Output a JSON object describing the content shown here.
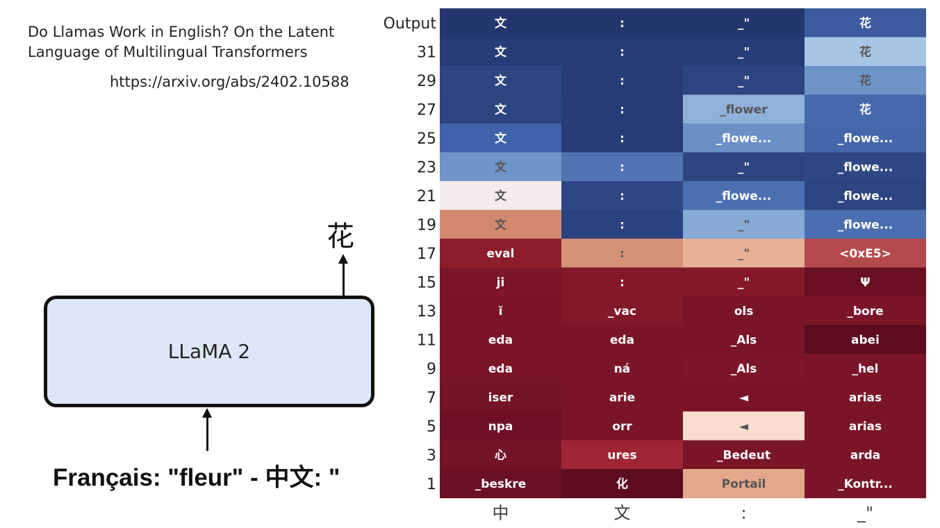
{
  "slide": {
    "paper_title_line1": "Do Llamas Work in English? On the Latent",
    "paper_title_line2": "Language of Multilingual Transformers",
    "paper_url": "https://arxiv.org/abs/2402.10588",
    "model_label": "LLaMA 2",
    "output_token": "花",
    "prompt": "Français: \"fleur\" - 中文: \""
  },
  "chart_data": {
    "type": "heatmap",
    "row_labels": [
      "Output",
      "31",
      "29",
      "27",
      "25",
      "23",
      "21",
      "19",
      "17",
      "15",
      "13",
      "11",
      "9",
      "7",
      "5",
      "3",
      "1"
    ],
    "col_labels": [
      "中",
      "文",
      ":",
      "_\""
    ],
    "cells": [
      [
        {
          "text": "文",
          "color": "#23376e"
        },
        {
          "text": ":",
          "color": "#23376e"
        },
        {
          "text": "_\"",
          "color": "#23376e"
        },
        {
          "text": "花",
          "color": "#3d5b9e"
        }
      ],
      [
        {
          "text": "文",
          "color": "#263c76"
        },
        {
          "text": ":",
          "color": "#263c76"
        },
        {
          "text": "_\"",
          "color": "#263c76"
        },
        {
          "text": "花",
          "color": "#a7c5e4"
        }
      ],
      [
        {
          "text": "文",
          "color": "#2d4683"
        },
        {
          "text": ":",
          "color": "#263c76"
        },
        {
          "text": "_\"",
          "color": "#2c4480"
        },
        {
          "text": "花",
          "color": "#6e94c7"
        }
      ],
      [
        {
          "text": "文",
          "color": "#2b4580"
        },
        {
          "text": ":",
          "color": "#263c76"
        },
        {
          "text": "_flower",
          "color": "#8fb1da"
        },
        {
          "text": "花",
          "color": "#4669ac"
        }
      ],
      [
        {
          "text": "文",
          "color": "#3f62aa"
        },
        {
          "text": ":",
          "color": "#263c76"
        },
        {
          "text": "_flowe...",
          "color": "#6a90c5"
        },
        {
          "text": "_flowe...",
          "color": "#4566a9"
        }
      ],
      [
        {
          "text": "文",
          "color": "#6e94c8"
        },
        {
          "text": ":",
          "color": "#5273b2"
        },
        {
          "text": "_\"",
          "color": "#2c4580"
        },
        {
          "text": "_flowe...",
          "color": "#2f4885"
        }
      ],
      [
        {
          "text": "文",
          "color": "#f6ebec"
        },
        {
          "text": ":",
          "color": "#2f4885"
        },
        {
          "text": "_flowe...",
          "color": "#4c6fb0"
        },
        {
          "text": "_flowe...",
          "color": "#2c4580"
        }
      ],
      [
        {
          "text": "文",
          "color": "#d3896d"
        },
        {
          "text": ":",
          "color": "#2a437f"
        },
        {
          "text": "_\"",
          "color": "#86a9d5"
        },
        {
          "text": "_flowe...",
          "color": "#4a6eaf"
        }
      ],
      [
        {
          "text": "eval",
          "color": "#8c1d2d"
        },
        {
          "text": ":",
          "color": "#d69277"
        },
        {
          "text": "_\"",
          "color": "#e8b094"
        },
        {
          "text": "<0xE5>",
          "color": "#b54a4e"
        }
      ],
      [
        {
          "text": "ji",
          "color": "#7c1528"
        },
        {
          "text": ":",
          "color": "#821829"
        },
        {
          "text": "_\"",
          "color": "#821829"
        },
        {
          "text": "Ψ",
          "color": "#6b0f23"
        }
      ],
      [
        {
          "text": "ĭ",
          "color": "#7a1528"
        },
        {
          "text": "_vac",
          "color": "#821829"
        },
        {
          "text": "ols",
          "color": "#7a1528"
        },
        {
          "text": "_bore",
          "color": "#7a1528"
        }
      ],
      [
        {
          "text": "eda",
          "color": "#7a1528"
        },
        {
          "text": "eda",
          "color": "#791527"
        },
        {
          "text": "_Als",
          "color": "#7a1528"
        },
        {
          "text": "abei",
          "color": "#5d0b1f"
        }
      ],
      [
        {
          "text": "eda",
          "color": "#7a1528"
        },
        {
          "text": "ná",
          "color": "#7a1528"
        },
        {
          "text": "_Als",
          "color": "#7d1628"
        },
        {
          "text": "_hel",
          "color": "#7a1528"
        }
      ],
      [
        {
          "text": "iser",
          "color": "#731326"
        },
        {
          "text": "arie",
          "color": "#7a1528"
        },
        {
          "text": "◄",
          "color": "#7a1528"
        },
        {
          "text": "arias",
          "color": "#7a1528"
        }
      ],
      [
        {
          "text": "npa",
          "color": "#6e1125"
        },
        {
          "text": "orr",
          "color": "#7a1528"
        },
        {
          "text": "◄",
          "color": "#f7dcd0"
        },
        {
          "text": "arias",
          "color": "#7a1528"
        }
      ],
      [
        {
          "text": "心",
          "color": "#731326"
        },
        {
          "text": "ures",
          "color": "#9e2535"
        },
        {
          "text": "_Bedeut",
          "color": "#7a1528"
        },
        {
          "text": "arda",
          "color": "#7a1528"
        }
      ],
      [
        {
          "text": "_beskre",
          "color": "#6a1024"
        },
        {
          "text": "化",
          "color": "#5d0b1f"
        },
        {
          "text": "Portail",
          "color": "#e3a78c"
        },
        {
          "text": "_Kontr...",
          "color": "#7a1528"
        }
      ]
    ]
  }
}
